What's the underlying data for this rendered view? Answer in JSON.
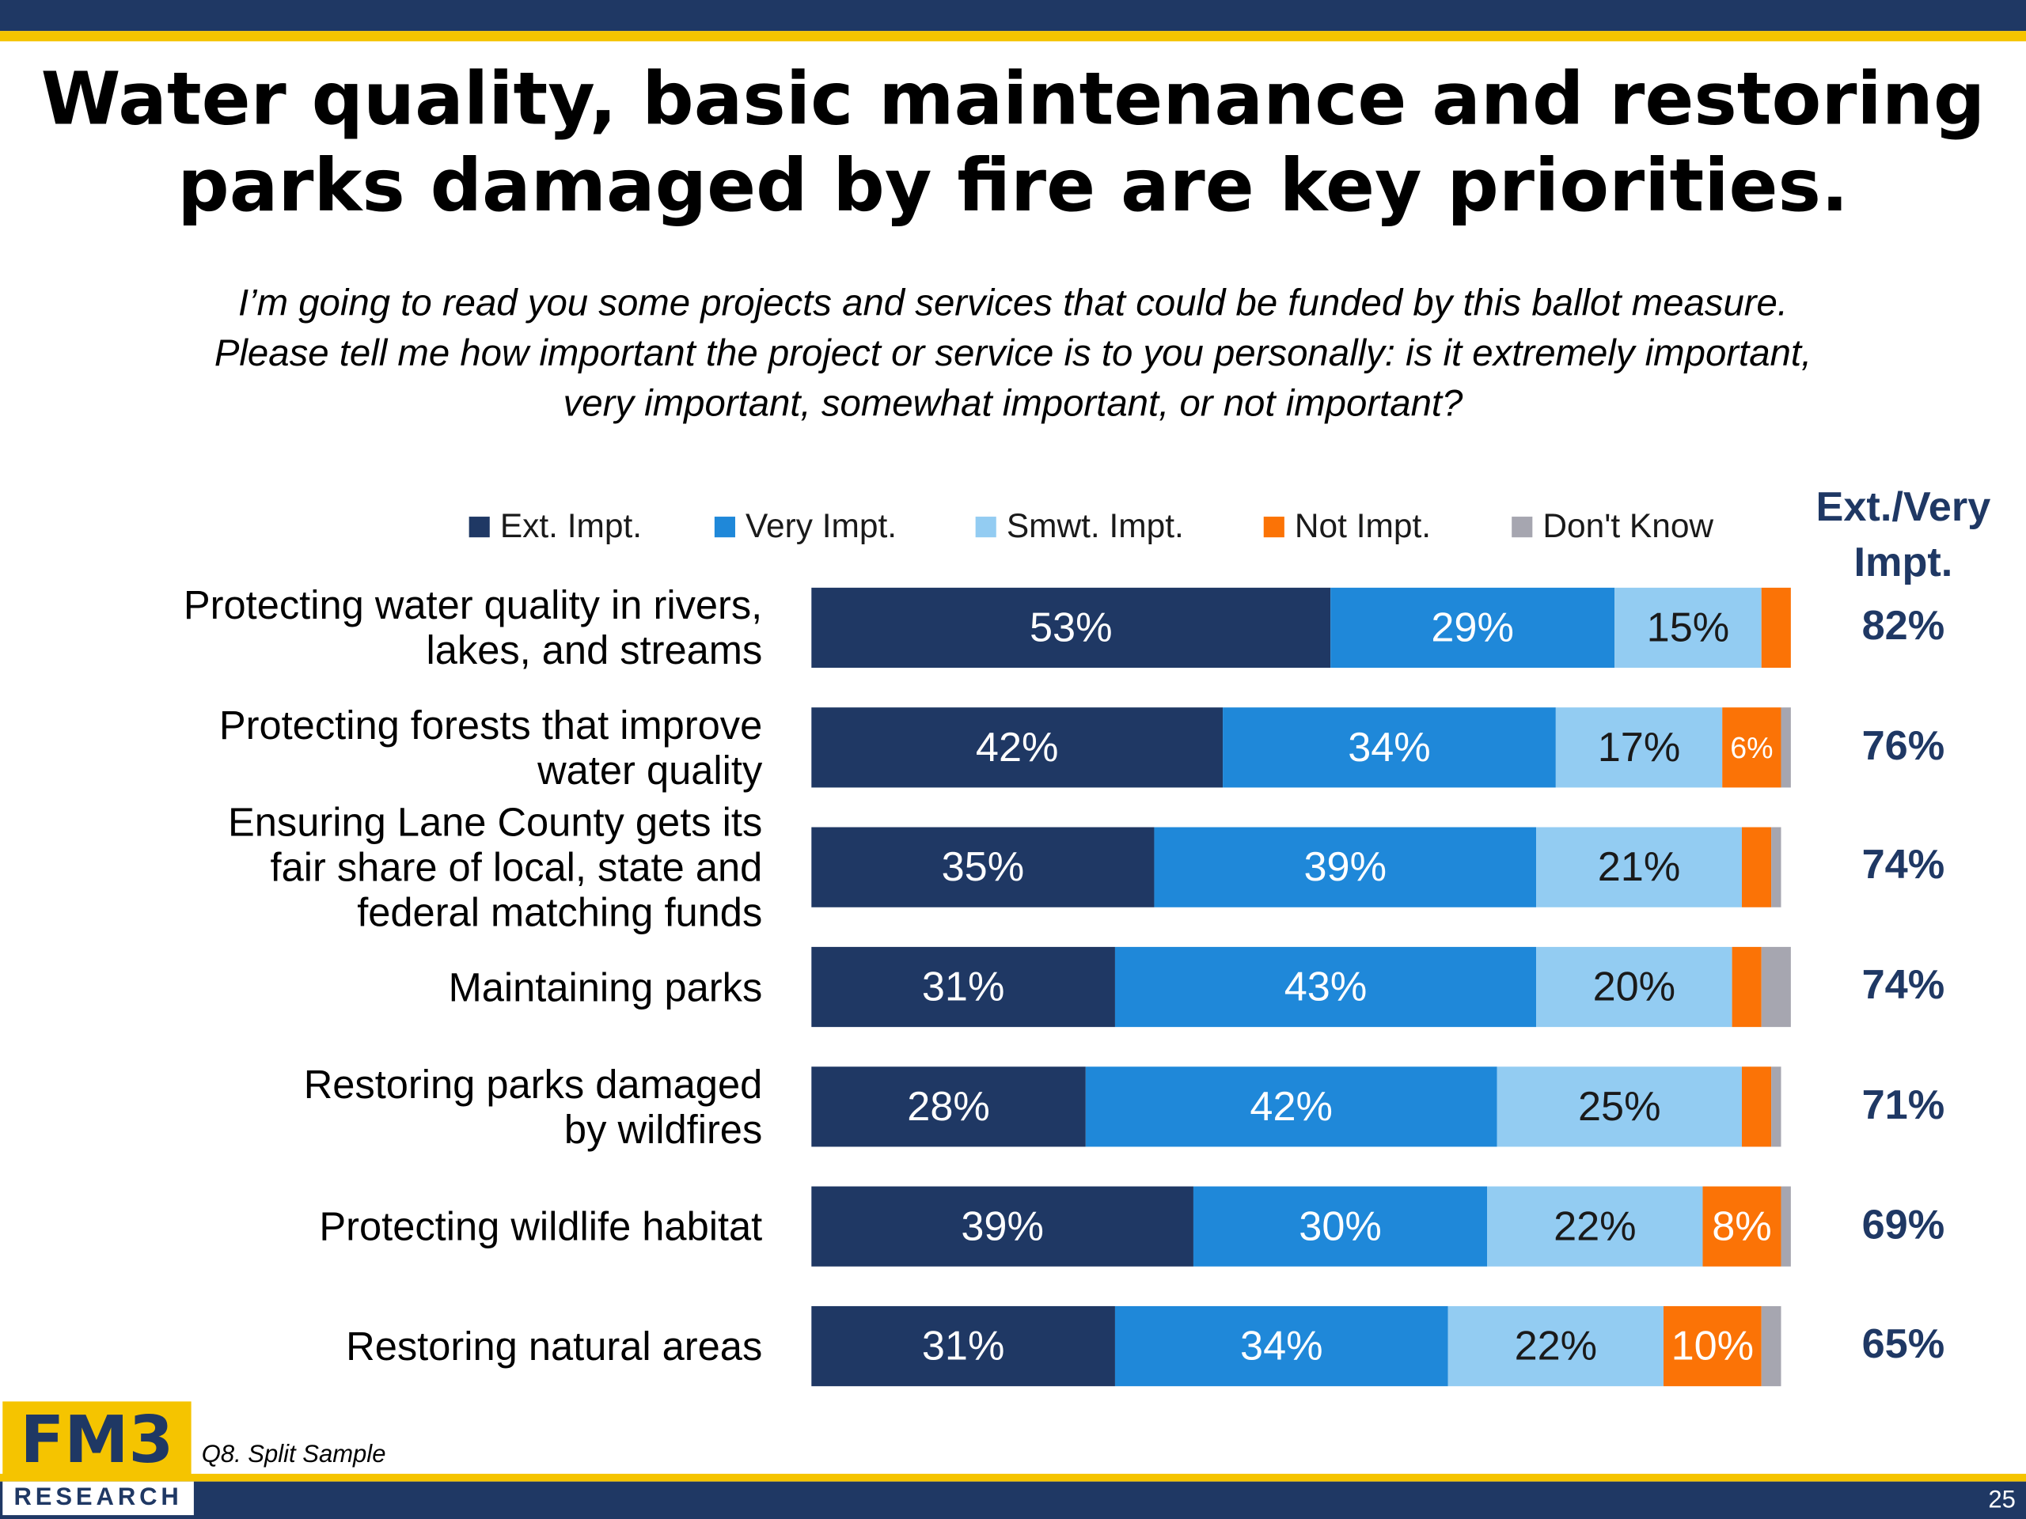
{
  "chart_data": {
    "type": "stacked-bar-horizontal",
    "title": [
      "Water quality, basic maintenance and restoring",
      "parks damaged by fire are key priorities."
    ],
    "subtitle": [
      "I’m going to read you some projects and services that could be funded by this ballot measure.",
      "Please tell me how important the project or service is to you personally: is it extremely important,",
      "very important, somewhat important, or not important?"
    ],
    "categories": [
      "Protecting water quality in rivers,\nlakes, and streams",
      "Protecting forests that improve\nwater quality",
      "Ensuring Lane County gets its\nfair share of local, state and\nfederal matching funds",
      "Maintaining parks",
      "Restoring parks damaged\nby wildfires",
      "Protecting wildlife habitat",
      "Restoring natural areas"
    ],
    "xlim": [
      0,
      100
    ],
    "series": [
      {
        "name": "Ext. Impt.",
        "color": "#1f3864",
        "label_color": "#ffffff",
        "values": [
          53,
          42,
          35,
          31,
          28,
          39,
          31
        ],
        "value_labels": [
          "53%",
          "42%",
          "35%",
          "31%",
          "28%",
          "39%",
          "31%"
        ]
      },
      {
        "name": "Very Impt.",
        "color": "#1f88d9",
        "label_color": "#ffffff",
        "values": [
          29,
          34,
          39,
          43,
          42,
          30,
          34
        ],
        "value_labels": [
          "29%",
          "34%",
          "39%",
          "43%",
          "42%",
          "30%",
          "34%"
        ]
      },
      {
        "name": "Smwt. Impt.",
        "color": "#93ccf2",
        "label_color": "#1a1a1a",
        "values": [
          15,
          17,
          21,
          20,
          25,
          22,
          22
        ],
        "value_labels": [
          "15%",
          "17%",
          "21%",
          "20%",
          "25%",
          "22%",
          "22%"
        ]
      },
      {
        "name": "Not Impt.",
        "color": "#fb7306",
        "label_color": "#ffffff",
        "values": [
          3,
          6,
          3,
          3,
          3,
          8,
          10
        ],
        "value_labels": [
          null,
          "6%",
          null,
          null,
          null,
          "8%",
          "10%"
        ]
      },
      {
        "name": "Don't Know",
        "color": "#a6a6b0",
        "label_color": "#ffffff",
        "values": [
          0,
          1,
          1,
          3,
          1,
          1,
          2
        ],
        "value_labels": [
          null,
          null,
          null,
          null,
          null,
          null,
          null
        ]
      }
    ],
    "totals": {
      "header": [
        "Ext./Very",
        "Impt."
      ],
      "values": [
        "82%",
        "76%",
        "74%",
        "74%",
        "71%",
        "69%",
        "65%"
      ]
    },
    "footer": {
      "logo": "FM3",
      "logo_sub": "RESEARCH",
      "note": "Q8. Split Sample",
      "page": "25"
    }
  }
}
